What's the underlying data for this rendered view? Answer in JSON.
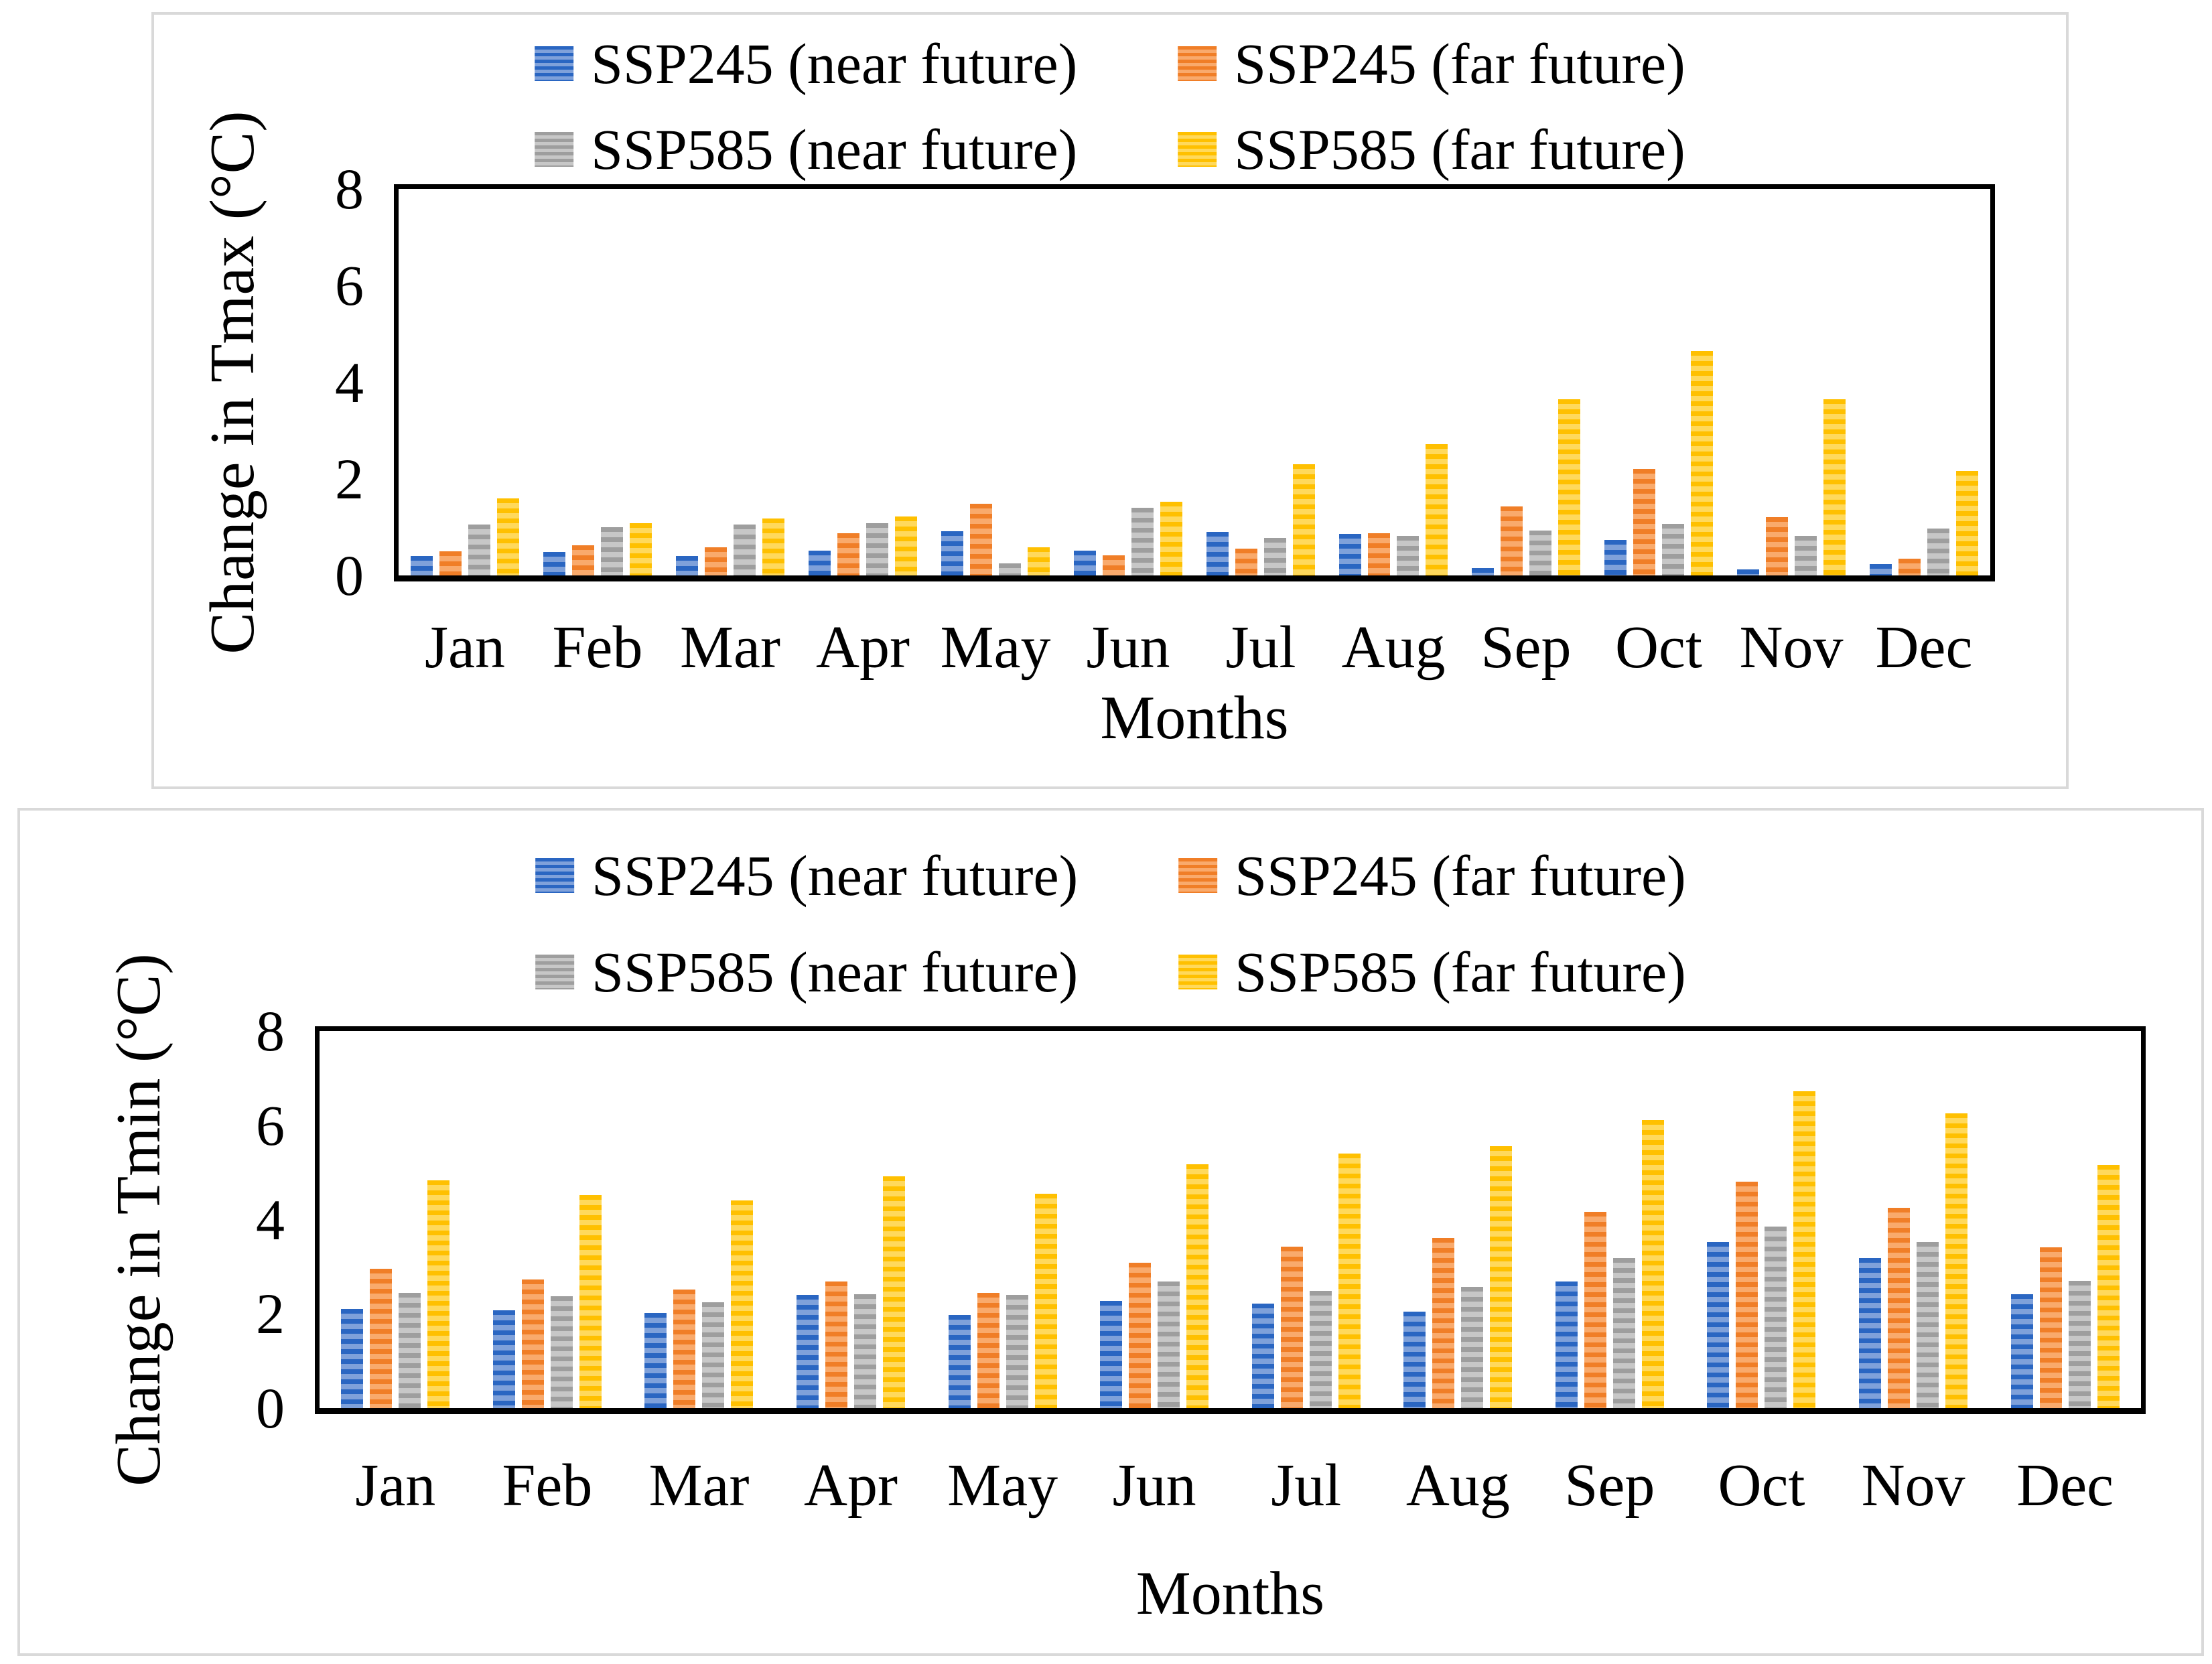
{
  "figure": {
    "description": "Two stacked striped bar-chart panels of projected temperature change by month",
    "panel_border_color": "#d9d9d9",
    "axis_color": "#000000",
    "background": "#ffffff"
  },
  "colors": {
    "blue": {
      "dark": "#2A66C2",
      "light": "#7FA1DA"
    },
    "orange": {
      "dark": "#F07E27",
      "light": "#F9AA6C"
    },
    "gray": {
      "dark": "#9E9E9E",
      "light": "#C7C7C7"
    },
    "yellow": {
      "dark": "#FFC000",
      "light": "#FFD95C"
    }
  },
  "chart_data": [
    {
      "type": "bar",
      "title": "",
      "ylabel": "Change in Tmax (°C)",
      "xlabel": "Months",
      "ylim": [
        0,
        8
      ],
      "yticks": [
        0,
        2,
        4,
        6,
        8
      ],
      "grid": false,
      "legend_position": "top",
      "categories": [
        "Jan",
        "Feb",
        "Mar",
        "Apr",
        "May",
        "Jun",
        "Jul",
        "Aug",
        "Sep",
        "Oct",
        "Nov",
        "Dec"
      ],
      "series": [
        {
          "name": "SSP245 (near future)",
          "key": "ssp245-near",
          "color": "blue",
          "values": [
            0.4,
            0.48,
            0.4,
            0.52,
            0.92,
            0.52,
            0.9,
            0.86,
            0.15,
            0.74,
            0.12,
            0.23
          ]
        },
        {
          "name": "SSP245 (far future)",
          "key": "ssp245-far",
          "color": "orange",
          "values": [
            0.5,
            0.62,
            0.58,
            0.88,
            1.48,
            0.42,
            0.55,
            0.87,
            1.43,
            2.2,
            1.21,
            0.35
          ]
        },
        {
          "name": "SSP585 (near future)",
          "key": "ssp585-near",
          "color": "gray",
          "values": [
            1.05,
            1.0,
            1.05,
            1.08,
            0.25,
            1.4,
            0.78,
            0.82,
            0.93,
            1.07,
            0.82,
            0.97
          ]
        },
        {
          "name": "SSP585 (far future)",
          "key": "ssp585-far",
          "color": "yellow",
          "values": [
            1.6,
            1.08,
            1.18,
            1.22,
            0.58,
            1.52,
            2.3,
            2.72,
            3.65,
            4.65,
            3.65,
            2.16
          ]
        }
      ]
    },
    {
      "type": "bar",
      "title": "",
      "ylabel": "Change in Tmin (°C)",
      "xlabel": "Months",
      "ylim": [
        0,
        8
      ],
      "yticks": [
        0,
        2,
        4,
        6,
        8
      ],
      "grid": false,
      "legend_position": "top",
      "categories": [
        "Jan",
        "Feb",
        "Mar",
        "Apr",
        "May",
        "Jun",
        "Jul",
        "Aug",
        "Sep",
        "Oct",
        "Nov",
        "Dec"
      ],
      "series": [
        {
          "name": "SSP245 (near future)",
          "key": "ssp245-near",
          "color": "blue",
          "values": [
            2.1,
            2.08,
            2.02,
            2.4,
            1.98,
            2.28,
            2.21,
            2.04,
            2.68,
            3.53,
            3.18,
            2.41
          ]
        },
        {
          "name": "SSP245 (far future)",
          "key": "ssp245-far",
          "color": "orange",
          "values": [
            2.95,
            2.73,
            2.51,
            2.69,
            2.45,
            3.08,
            3.42,
            3.61,
            4.16,
            4.81,
            4.25,
            3.41
          ]
        },
        {
          "name": "SSP585 (near future)",
          "key": "ssp585-near",
          "color": "gray",
          "values": [
            2.45,
            2.37,
            2.25,
            2.42,
            2.4,
            2.68,
            2.48,
            2.57,
            3.18,
            3.85,
            3.53,
            2.7
          ]
        },
        {
          "name": "SSP585 (far future)",
          "key": "ssp585-far",
          "color": "yellow",
          "values": [
            4.83,
            4.52,
            4.4,
            4.91,
            4.55,
            5.17,
            5.4,
            5.56,
            6.11,
            6.72,
            6.25,
            5.16
          ]
        }
      ]
    }
  ]
}
